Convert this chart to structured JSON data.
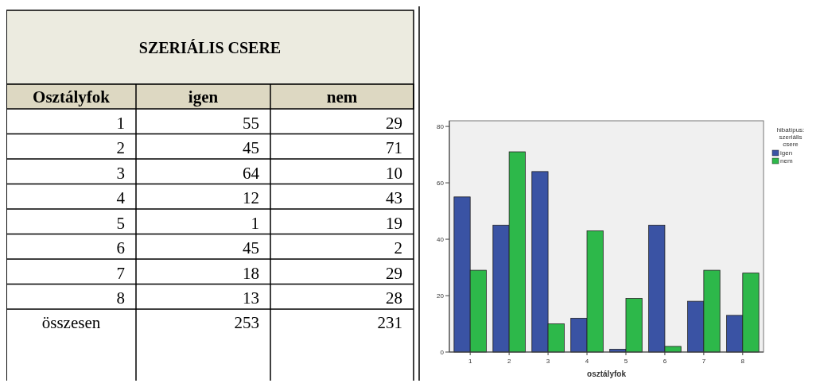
{
  "chart_data": {
    "type": "bar",
    "title": "SZERIÁLIS CSERE",
    "xlabel": "osztályfok",
    "legend_title": "hibatípus: szeriális csere",
    "categories": [
      "1",
      "2",
      "3",
      "4",
      "5",
      "6",
      "7",
      "8"
    ],
    "series": [
      {
        "name": "igen",
        "color": "#3a53a4",
        "values": [
          55,
          45,
          64,
          12,
          1,
          45,
          18,
          13
        ]
      },
      {
        "name": "nem",
        "color": "#2db84a",
        "values": [
          29,
          71,
          10,
          43,
          19,
          2,
          29,
          28
        ]
      }
    ],
    "ylim": [
      0,
      82
    ],
    "yticks": [
      0,
      20,
      40,
      60,
      80
    ],
    "grid": false,
    "legend": "top right",
    "annotations": [
      "Osztályfok",
      "55",
      "29",
      "45",
      "71",
      "64",
      "10",
      "12",
      "43",
      "1",
      "19",
      "45",
      "2",
      "18",
      "29",
      "13",
      "28",
      "összesen",
      "253",
      "231"
    ]
  }
}
